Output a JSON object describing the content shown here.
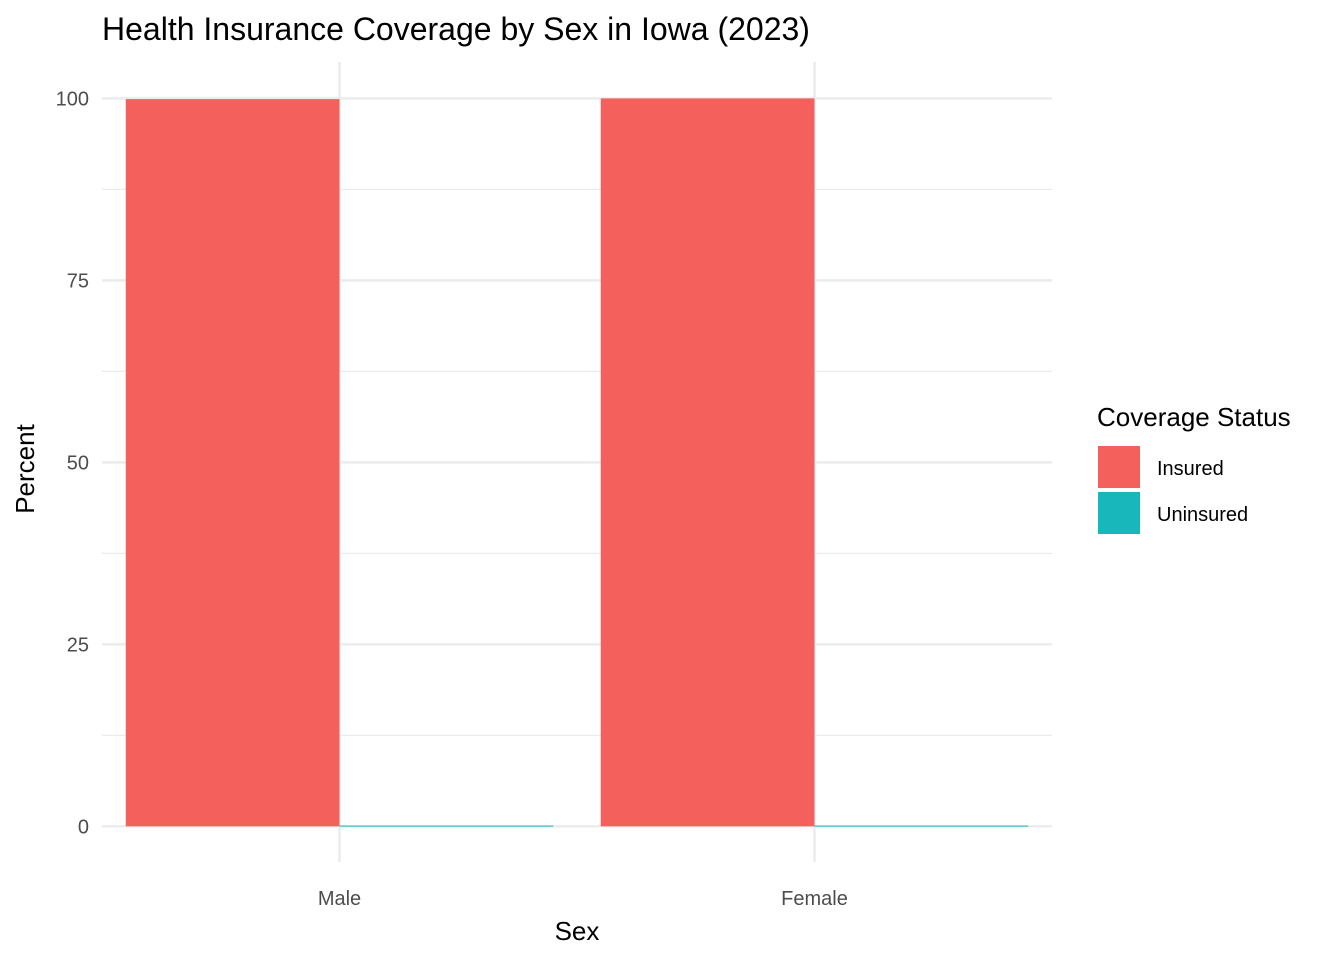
{
  "chart_data": {
    "type": "bar",
    "title": "Health Insurance Coverage by Sex in Iowa (2023)",
    "xlabel": "Sex",
    "ylabel": "Percent",
    "categories": [
      "Male",
      "Female"
    ],
    "series": [
      {
        "name": "Insured",
        "color": "#F4605C",
        "values": [
          99.9,
          100.0
        ]
      },
      {
        "name": "Uninsured",
        "color": "#17B7BB",
        "values": [
          0.1,
          0.1
        ]
      }
    ],
    "ylim": [
      -4.9,
      105
    ],
    "yticks": [
      0,
      25,
      50,
      75,
      100
    ],
    "yticks_minor": [
      12.5,
      37.5,
      62.5,
      87.5
    ],
    "grid": true,
    "legend": {
      "title": "Coverage Status",
      "position": "right"
    }
  }
}
